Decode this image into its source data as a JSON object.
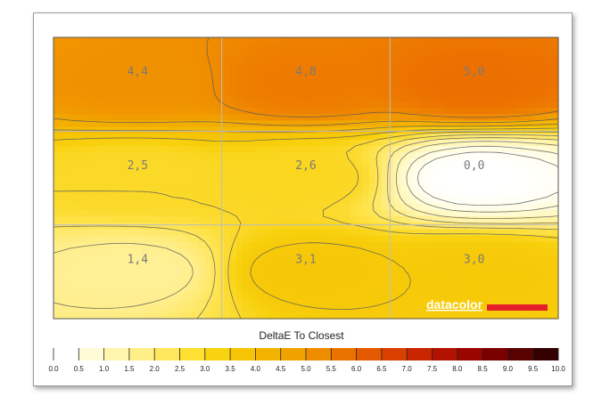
{
  "chart_data": {
    "type": "heatmap",
    "title": "DeltaE To Closest",
    "grid": {
      "rows": 3,
      "cols": 3,
      "gridlines": true
    },
    "cells": [
      [
        4.4,
        4.8,
        5.0
      ],
      [
        2.5,
        2.6,
        0.0
      ],
      [
        1.4,
        3.1,
        3.0
      ]
    ],
    "cell_labels": [
      [
        "4,4",
        "4,8",
        "5,0"
      ],
      [
        "2,5",
        "2,6",
        "0,0"
      ],
      [
        "1,4",
        "3,1",
        "3,0"
      ]
    ],
    "colorbar": {
      "range": [
        0,
        10
      ],
      "ticks": [
        "0.0",
        "0.5",
        "1.0",
        "1.5",
        "2.0",
        "2.5",
        "3.0",
        "3.5",
        "4.0",
        "4.5",
        "5.0",
        "5.5",
        "6.0",
        "6.5",
        "7.0",
        "7.5",
        "8.0",
        "8.5",
        "9.0",
        "9.5",
        "10.0"
      ],
      "colors": [
        "#ffffff",
        "#fffbd6",
        "#fff5ad",
        "#ffef86",
        "#ffe75c",
        "#fde030",
        "#f9d30f",
        "#f5c405",
        "#f2b400",
        "#f0a200",
        "#ee8d00",
        "#ea7300",
        "#e55a00",
        "#d94000",
        "#c92600",
        "#b41200",
        "#9a0500",
        "#7b0000",
        "#590000",
        "#340000"
      ]
    },
    "contour_levels": [
      0.2,
      0.5,
      1.0,
      1.5,
      2.0,
      2.5,
      3.0,
      3.5,
      4.0,
      4.5,
      5.0
    ]
  },
  "logo": {
    "text": "datacolor",
    "accent": "#e3202a"
  }
}
